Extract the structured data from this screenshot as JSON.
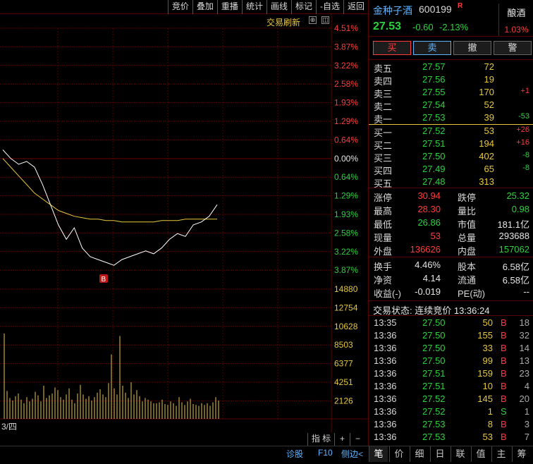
{
  "toolbar": {
    "items": [
      "竞价",
      "叠加",
      "重播",
      "统计",
      "画线",
      "标记",
      "-自选",
      "返回"
    ]
  },
  "chart": {
    "refresh_label": "交易刷新",
    "right_axis": [
      "4.51%",
      "3.87%",
      "3.22%",
      "2.58%",
      "1.93%",
      "1.29%",
      "0.64%",
      "0.00%",
      "0.64%",
      "1.29%",
      "1.93%",
      "2.58%",
      "3.22%",
      "3.87%"
    ],
    "volume_axis": [
      "14880",
      "12754",
      "10628",
      "8503",
      "6377",
      "4251",
      "2126"
    ],
    "date_label": "3/四",
    "marker_label": "B",
    "colors": {
      "grid": "#5a0000",
      "price_line": "#ffffff",
      "avg_line": "#e8c83a",
      "volume": "#e8c83a",
      "up": "#ff3b3b",
      "down": "#2bd23b"
    }
  },
  "chart_data": {
    "type": "line",
    "xlabel": "",
    "ylabel": "",
    "series": [
      {
        "values": [
          0.3,
          0.0,
          -0.2,
          -0.1,
          -0.3,
          -0.9,
          -1.6,
          -2.3,
          -2.8,
          -2.4,
          -3.1,
          -3.4,
          -3.5,
          -3.6,
          -3.7,
          -3.5,
          -3.4,
          -3.3,
          -3.2,
          -3.3,
          -3.1,
          -2.8,
          -2.6,
          -2.7,
          -2.3,
          -2.2,
          -2.0,
          -1.6
        ]
      },
      {
        "values": [
          0.0,
          -0.3,
          -0.6,
          -0.9,
          -1.2,
          -1.4,
          -1.6,
          -1.8,
          -1.9,
          -2.0,
          -2.05,
          -2.1,
          -2.1,
          -2.15,
          -2.15,
          -2.2,
          -2.2,
          -2.2,
          -2.2,
          -2.2,
          -2.15,
          -2.15,
          -2.15,
          -2.1,
          -2.1,
          -2.1,
          -2.1,
          -2.1
        ]
      }
    ],
    "volume": [
      9800,
      3200,
      2400,
      2100,
      2600,
      2900,
      2200,
      1800,
      2500,
      2000,
      2300,
      3100,
      2700,
      2000,
      3800,
      2400,
      2700,
      2900,
      3600,
      3300,
      2500,
      2200,
      2800,
      3500,
      2200,
      1800,
      2900,
      3900,
      2800,
      2300,
      2600,
      2100,
      2500,
      3000,
      3400,
      2800,
      2500,
      4100,
      7400,
      3500,
      2800,
      9500,
      3800,
      3000,
      2400,
      4200,
      2800,
      3300,
      2600,
      2000,
      2400,
      2200,
      2000,
      1800,
      1800,
      1900,
      2200,
      1700,
      1600,
      2000,
      1800,
      1500,
      2500,
      1900,
      1600,
      2000,
      2300,
      1700,
      1600,
      1500,
      1800,
      1600,
      1800,
      1500,
      1900,
      2500,
      2100
    ]
  },
  "bottombar": {
    "index_label": "指 标",
    "plus": "+",
    "minus": "−"
  },
  "stock": {
    "name": "金种子酒",
    "code": "600199",
    "flag": "R",
    "sector": "酿酒",
    "sector_change": "1.03%",
    "price": "27.53",
    "change": "-0.60",
    "change_pct": "-2.13%"
  },
  "buttons": {
    "buy": "买",
    "sell": "卖",
    "cancel": "撤",
    "alert": "警"
  },
  "asks": [
    {
      "label": "卖五",
      "price": "27.57",
      "vol": "72",
      "delta": ""
    },
    {
      "label": "卖四",
      "price": "27.56",
      "vol": "19",
      "delta": ""
    },
    {
      "label": "卖三",
      "price": "27.55",
      "vol": "170",
      "delta": "+1"
    },
    {
      "label": "卖二",
      "price": "27.54",
      "vol": "52",
      "delta": ""
    },
    {
      "label": "卖一",
      "price": "27.53",
      "vol": "39",
      "delta": "-53"
    }
  ],
  "bids": [
    {
      "label": "买一",
      "price": "27.52",
      "vol": "53",
      "delta": "+26"
    },
    {
      "label": "买二",
      "price": "27.51",
      "vol": "194",
      "delta": "+16"
    },
    {
      "label": "买三",
      "price": "27.50",
      "vol": "402",
      "delta": "-8"
    },
    {
      "label": "买四",
      "price": "27.49",
      "vol": "65",
      "delta": "-8"
    },
    {
      "label": "买五",
      "price": "27.48",
      "vol": "313",
      "delta": ""
    }
  ],
  "stats": [
    {
      "l1": "涨停",
      "v1": "30.94",
      "l2": "跌停",
      "v2": "25.32"
    },
    {
      "l1": "最高",
      "v1": "28.30",
      "l2": "量比",
      "v2": "0.98"
    },
    {
      "l1": "最低",
      "v1": "26.86",
      "l2": "市值",
      "v2": "181.1亿"
    },
    {
      "l1": "现量",
      "v1": "53",
      "l2": "总量",
      "v2": "293688"
    },
    {
      "l1": "外盘",
      "v1": "136626",
      "l2": "内盘",
      "v2": "157062"
    }
  ],
  "stats2": [
    {
      "l1": "换手",
      "v1": "4.46%",
      "l2": "股本",
      "v2": "6.58亿"
    },
    {
      "l1": "净资",
      "v1": "4.14",
      "l2": "流通",
      "v2": "6.58亿"
    },
    {
      "l1": "收益(-)",
      "v1": "-0.019",
      "l2": "PE(动)",
      "v2": "--"
    }
  ],
  "status_line": "交易状态: 连续竞价 13:36:24",
  "ticks": [
    {
      "time": "13:35",
      "price": "27.50",
      "vol": "50",
      "side": "B",
      "count": "18"
    },
    {
      "time": "13:36",
      "price": "27.50",
      "vol": "155",
      "side": "B",
      "count": "32"
    },
    {
      "time": "13:36",
      "price": "27.50",
      "vol": "33",
      "side": "B",
      "count": "14"
    },
    {
      "time": "13:36",
      "price": "27.50",
      "vol": "99",
      "side": "B",
      "count": "13"
    },
    {
      "time": "13:36",
      "price": "27.51",
      "vol": "159",
      "side": "B",
      "count": "23"
    },
    {
      "time": "13:36",
      "price": "27.51",
      "vol": "10",
      "side": "B",
      "count": "4"
    },
    {
      "time": "13:36",
      "price": "27.52",
      "vol": "145",
      "side": "B",
      "count": "20"
    },
    {
      "time": "13:36",
      "price": "27.52",
      "vol": "1",
      "side": "S",
      "count": "1"
    },
    {
      "time": "13:36",
      "price": "27.53",
      "vol": "8",
      "side": "B",
      "count": "3"
    },
    {
      "time": "13:36",
      "price": "27.53",
      "vol": "53",
      "side": "B",
      "count": "7"
    }
  ],
  "footer": {
    "links": [
      "诊股",
      "F10",
      "侧边<"
    ],
    "tabs": [
      "笔",
      "价",
      "细",
      "日",
      "联",
      "值",
      "主",
      "筹"
    ]
  }
}
